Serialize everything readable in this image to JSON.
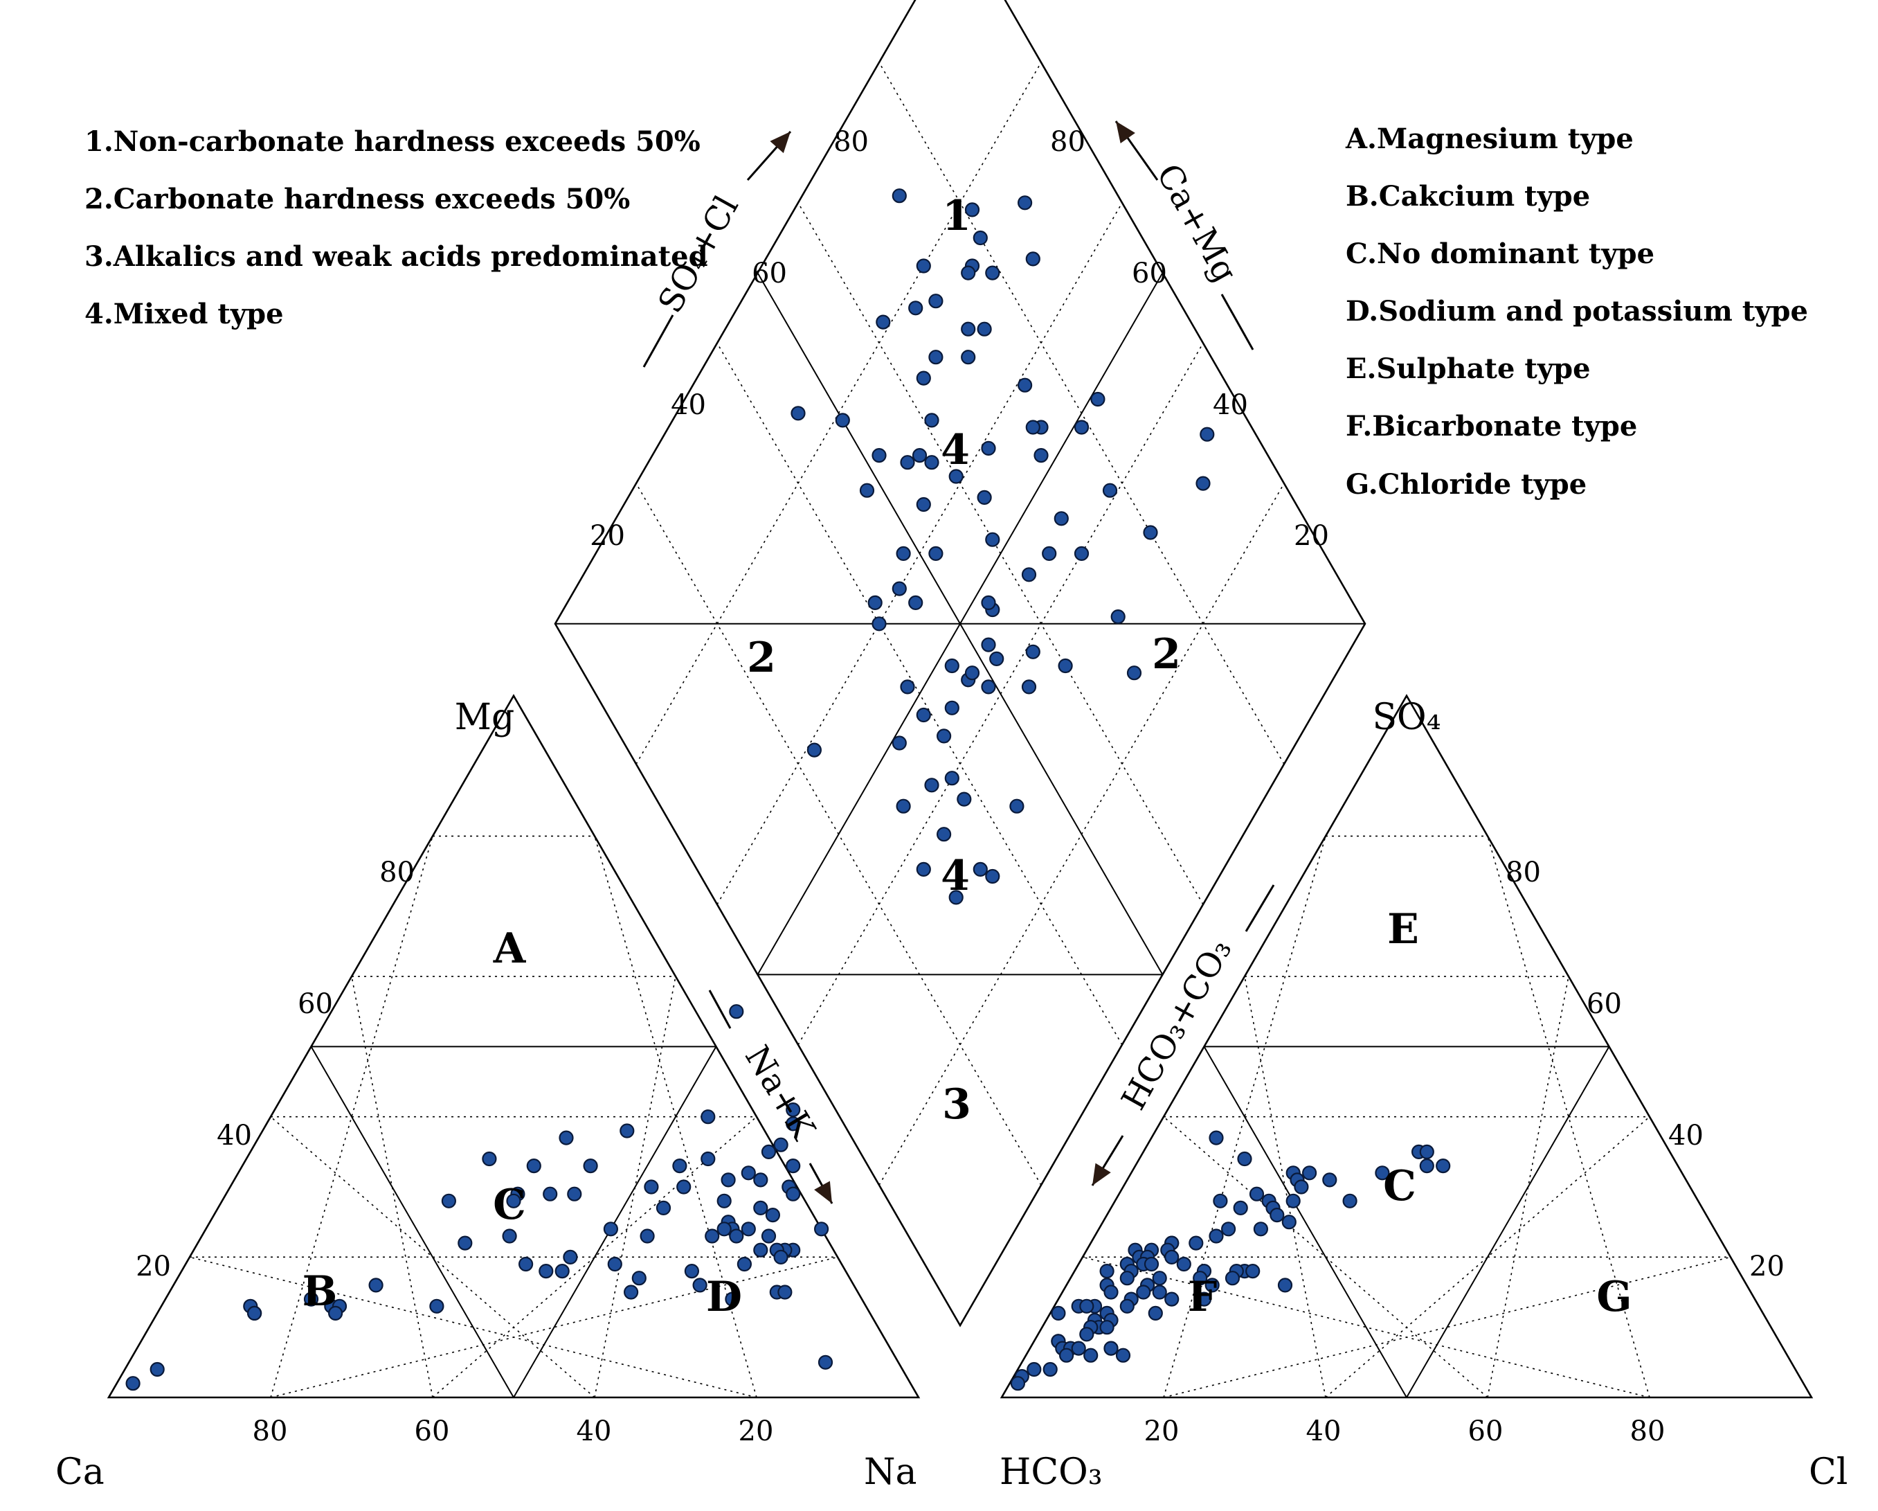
{
  "chart_data": {
    "type": "scatter",
    "subtype": "piper-trilinear",
    "legend_left": [
      "1.Non-carbonate hardness exceeds 50%",
      "2.Carbonate hardness exceeds 50%",
      "3.Alkalics and weak acids predominated",
      "4.Mixed type"
    ],
    "legend_right": [
      "A.Magnesium type",
      "B.Cakcium type",
      "C.No dominant type",
      "D.Sodium and potassium type",
      "E.Sulphate type",
      "F.Bicarbonate type",
      "G.Chloride type"
    ],
    "cation_triangle": {
      "apex_label": "Mg",
      "left_label": "Ca",
      "right_label": "Na",
      "arrow_label": "Na+K",
      "ticks": [
        "80",
        "60",
        "40",
        "20"
      ],
      "bottom_ticks": [
        "80",
        "60",
        "40",
        "20"
      ],
      "fields": [
        "A",
        "B",
        "C",
        "D"
      ],
      "points_mg_na": [
        [
          55,
          50
        ],
        [
          41,
          64
        ],
        [
          40,
          54
        ],
        [
          39,
          65
        ],
        [
          38,
          45
        ],
        [
          37,
          38
        ],
        [
          36,
          65
        ],
        [
          35,
          64
        ],
        [
          34,
          57
        ],
        [
          34,
          30
        ],
        [
          33,
          43
        ],
        [
          33,
          36
        ],
        [
          33,
          54
        ],
        [
          33,
          68
        ],
        [
          32,
          63
        ],
        [
          31,
          65
        ],
        [
          31,
          61
        ],
        [
          30,
          52
        ],
        [
          30,
          56
        ],
        [
          30,
          69
        ],
        [
          29,
          40
        ],
        [
          29,
          43
        ],
        [
          29,
          70
        ],
        [
          29,
          36
        ],
        [
          28,
          28
        ],
        [
          28,
          36
        ],
        [
          28,
          62
        ],
        [
          27,
          67
        ],
        [
          27,
          55
        ],
        [
          26,
          69
        ],
        [
          25,
          64
        ],
        [
          24,
          50
        ],
        [
          24,
          65
        ],
        [
          24,
          64
        ],
        [
          24,
          76
        ],
        [
          24,
          67
        ],
        [
          23,
          63
        ],
        [
          23,
          70
        ],
        [
          23,
          66
        ],
        [
          23,
          55
        ],
        [
          23,
          38
        ],
        [
          22,
          33
        ],
        [
          21,
          74
        ],
        [
          21,
          73
        ],
        [
          21,
          72
        ],
        [
          21,
          70
        ],
        [
          20,
          47
        ],
        [
          20,
          73
        ],
        [
          19,
          42
        ],
        [
          19,
          69
        ],
        [
          19,
          53
        ],
        [
          18,
          45
        ],
        [
          18,
          47
        ],
        [
          18,
          63
        ],
        [
          17,
          57
        ],
        [
          16,
          25
        ],
        [
          16,
          65
        ],
        [
          15,
          75
        ],
        [
          15,
          57
        ],
        [
          15,
          76
        ],
        [
          14,
          18
        ],
        [
          14,
          70
        ],
        [
          13,
          21
        ],
        [
          13,
          22
        ],
        [
          13,
          34
        ],
        [
          13,
          11
        ],
        [
          12,
          22
        ],
        [
          12,
          12
        ],
        [
          12,
          12
        ],
        [
          5,
          86
        ],
        [
          4,
          4
        ],
        [
          2,
          2
        ]
      ]
    },
    "anion_triangle": {
      "apex_label": "SO₄",
      "left_label": "HCO₃",
      "right_label": "Cl",
      "arrow_label": "HCO₃+CO₃",
      "ticks": [
        "80",
        "60",
        "40",
        "20"
      ],
      "bottom_ticks": [
        "20",
        "40",
        "60",
        "80"
      ],
      "fields": [
        "E",
        "C",
        "F",
        "G"
      ],
      "points_so4_cl": [
        [
          37,
          8
        ],
        [
          35,
          34
        ],
        [
          35,
          35
        ],
        [
          34,
          13
        ],
        [
          33,
          38
        ],
        [
          33,
          36
        ],
        [
          32,
          31
        ],
        [
          32,
          22
        ],
        [
          32,
          20
        ],
        [
          31,
          21
        ],
        [
          31,
          25
        ],
        [
          30,
          22
        ],
        [
          29,
          17
        ],
        [
          28,
          22
        ],
        [
          28,
          19
        ],
        [
          28,
          13
        ],
        [
          28,
          29
        ],
        [
          27,
          20
        ],
        [
          27,
          16
        ],
        [
          26,
          21
        ],
        [
          25,
          23
        ],
        [
          24,
          20
        ],
        [
          24,
          16
        ],
        [
          23,
          15
        ],
        [
          22,
          13
        ],
        [
          22,
          10
        ],
        [
          22,
          10
        ],
        [
          21,
          10
        ],
        [
          21,
          8
        ],
        [
          21,
          6
        ],
        [
          20,
          7
        ],
        [
          20,
          11
        ],
        [
          20,
          8
        ],
        [
          19,
          8
        ],
        [
          19,
          9
        ],
        [
          19,
          6
        ],
        [
          19,
          13
        ],
        [
          18,
          4
        ],
        [
          18,
          16
        ],
        [
          18,
          21
        ],
        [
          18,
          20
        ],
        [
          18,
          22
        ],
        [
          18,
          7
        ],
        [
          17,
          11
        ],
        [
          17,
          16
        ],
        [
          17,
          7
        ],
        [
          17,
          20
        ],
        [
          16,
          5
        ],
        [
          16,
          10
        ],
        [
          16,
          27
        ],
        [
          16,
          18
        ],
        [
          15,
          10
        ],
        [
          15,
          12
        ],
        [
          15,
          6
        ],
        [
          14,
          18
        ],
        [
          14,
          9
        ],
        [
          14,
          14
        ],
        [
          13,
          5
        ],
        [
          13,
          9
        ],
        [
          13,
          3
        ],
        [
          13,
          4
        ],
        [
          12,
          7
        ],
        [
          12,
          13
        ],
        [
          12,
          1
        ],
        [
          11,
          8
        ],
        [
          11,
          6
        ],
        [
          10,
          7
        ],
        [
          10,
          6
        ],
        [
          10,
          8
        ],
        [
          10,
          6
        ],
        [
          9,
          6
        ],
        [
          8,
          3
        ],
        [
          8,
          3
        ],
        [
          7,
          10
        ],
        [
          7,
          10
        ],
        [
          7,
          4
        ],
        [
          7,
          5
        ],
        [
          7,
          6
        ],
        [
          6,
          5
        ],
        [
          6,
          12
        ],
        [
          6,
          8
        ],
        [
          4,
          2
        ],
        [
          4,
          4
        ],
        [
          3,
          1
        ],
        [
          2,
          1
        ]
      ]
    },
    "diamond": {
      "top_left_label": "SO₄+Cl",
      "top_right_label": "Ca+Mg",
      "ticks_left": [
        "80",
        "60",
        "40",
        "20"
      ],
      "ticks_right": [
        "80",
        "60",
        "40",
        "20"
      ],
      "fields": [
        "1",
        "4",
        "2",
        "2",
        "4",
        "3"
      ],
      "points_x_y": [
        [
          54,
          63
        ],
        [
          74,
          54
        ],
        [
          62,
          45
        ],
        [
          52,
          45
        ],
        [
          62,
          81
        ],
        [
          83,
          49
        ],
        [
          78,
          41
        ],
        [
          94,
          33
        ],
        [
          90,
          30
        ],
        [
          80,
          33
        ],
        [
          70,
          40
        ],
        [
          40,
          44
        ],
        [
          44,
          30
        ],
        [
          60,
          61
        ],
        [
          77,
          74
        ],
        [
          55,
          68
        ],
        [
          66,
          59
        ],
        [
          52,
          58
        ],
        [
          55,
          47
        ],
        [
          62,
          56
        ],
        [
          75,
          59
        ],
        [
          60,
          52
        ],
        [
          61,
          68
        ],
        [
          45,
          60
        ],
        [
          46,
          48
        ],
        [
          79,
          71
        ],
        [
          72,
          70
        ],
        [
          52,
          72
        ],
        [
          48,
          62
        ],
        [
          66,
          72
        ],
        [
          70,
          76
        ],
        [
          30,
          31
        ],
        [
          38,
          37
        ],
        [
          79,
          49
        ],
        [
          33,
          37
        ],
        [
          35,
          42
        ],
        [
          34,
          49
        ],
        [
          23,
          59
        ],
        [
          46,
          57
        ],
        [
          57,
          67
        ],
        [
          58,
          65
        ],
        [
          50,
          79
        ],
        [
          45,
          85
        ],
        [
          70,
          45
        ],
        [
          73,
          55
        ],
        [
          35,
          30
        ],
        [
          70,
          68
        ],
        [
          70,
          31
        ],
        [
          63,
          72
        ],
        [
          72,
          52
        ],
        [
          38,
          40
        ],
        [
          71,
          80
        ],
        [
          28,
          37
        ],
        [
          47,
          45
        ],
        [
          55,
          48
        ],
        [
          54,
          37
        ],
        [
          48,
          45
        ],
        [
          49,
          42
        ],
        [
          39,
          48
        ],
        [
          48,
          71
        ],
        [
          52,
          43
        ],
        [
          88,
          72
        ],
        [
          80,
          75
        ],
        [
          81,
          78
        ],
        [
          73,
          88
        ],
        [
          60,
          34
        ],
        [
          68,
          25
        ],
        [
          66,
          44
        ],
        [
          74,
          68
        ],
        [
          76,
          74
        ],
        [
          85,
          67
        ],
        [
          36,
          28
        ],
        [
          67,
          78
        ],
        [
          43,
          45
        ],
        [
          57,
          39
        ],
        [
          41,
          62
        ],
        [
          39,
          52
        ],
        [
          30,
          44
        ],
        [
          40,
          60
        ]
      ]
    }
  }
}
